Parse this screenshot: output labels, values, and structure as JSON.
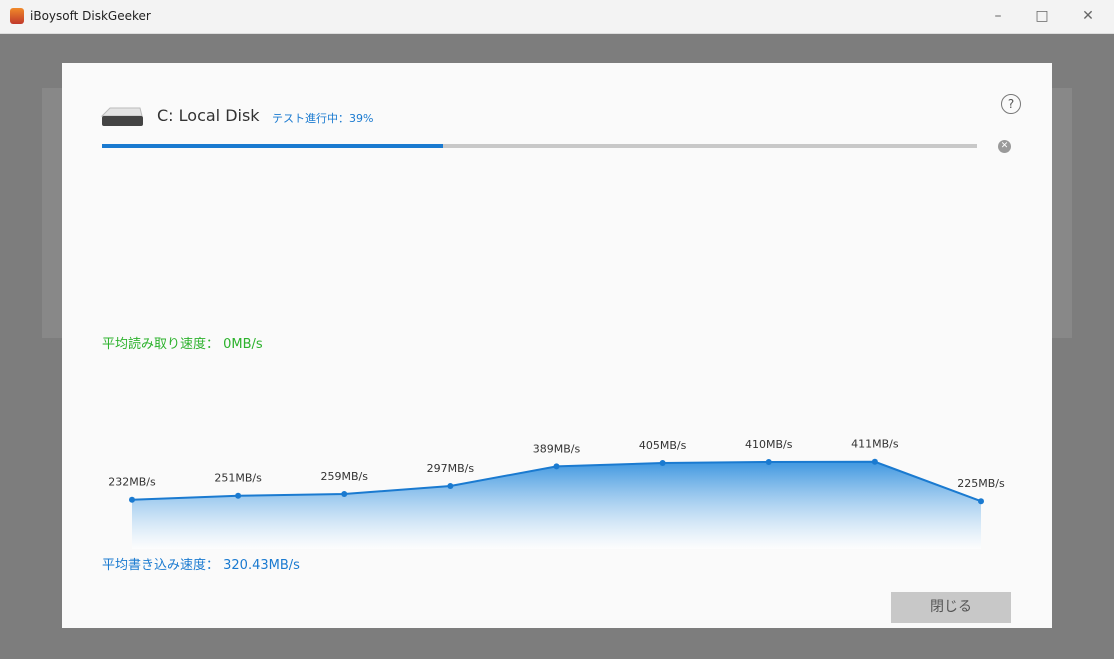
{
  "window": {
    "title": "iBoysoft DiskGeeker"
  },
  "dialog": {
    "disk_name": "C: Local Disk",
    "progress": {
      "label": "テスト進行中：39%",
      "value": 39
    },
    "read_speed": "平均読み取り速度： 0MB/s",
    "write_speed": "平均書き込み速度： 320.43MB/s",
    "close_button": "閉じる",
    "help_icon": "?"
  },
  "chart_data": {
    "type": "area",
    "color": "#1a7ad0",
    "values": [
      232,
      251,
      259,
      297,
      389,
      405,
      410,
      411,
      225
    ],
    "value_labels": [
      "232MB/s",
      "251MB/s",
      "259MB/s",
      "297MB/s",
      "389MB/s",
      "405MB/s",
      "410MB/s",
      "411MB/s",
      "225MB/s"
    ]
  }
}
